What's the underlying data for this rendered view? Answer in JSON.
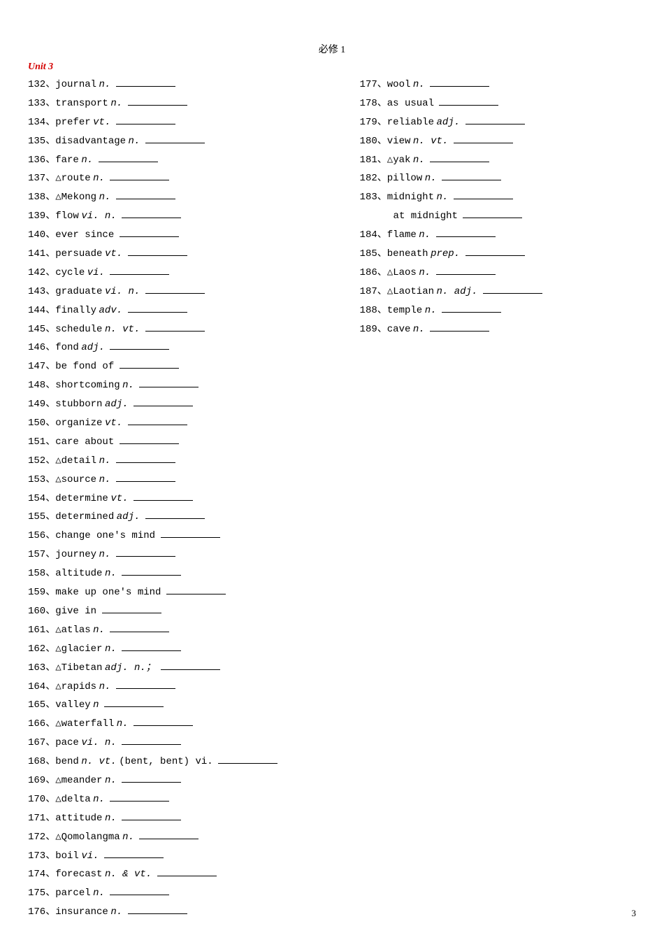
{
  "header": "必修 1",
  "unit_title": "Unit 3",
  "page_number": "3",
  "left": [
    {
      "num": "132",
      "word": "journal",
      "pos": "n."
    },
    {
      "num": "133",
      "word": "transport",
      "pos": "n."
    },
    {
      "num": "134",
      "word": "prefer",
      "pos": "vt."
    },
    {
      "num": "135",
      "word": "disadvantage",
      "pos": "n."
    },
    {
      "num": "136",
      "word": "fare",
      "pos": "n."
    },
    {
      "num": "137",
      "word": "△route",
      "pos": "n."
    },
    {
      "num": "138",
      "word": "△Mekong",
      "pos": "n."
    },
    {
      "num": "139",
      "word": "flow",
      "pos": "vi. n."
    },
    {
      "num": "140",
      "word": "ever since",
      "pos": ""
    },
    {
      "num": "141",
      "word": "persuade",
      "pos": "vt."
    },
    {
      "num": "142",
      "word": "cycle",
      "pos": "vi."
    },
    {
      "num": "143",
      "word": "graduate",
      "pos": "vi.  n."
    },
    {
      "num": "144",
      "word": "finally",
      "pos": "adv."
    },
    {
      "num": "145",
      "word": "schedule",
      "pos": "n. vt."
    },
    {
      "num": "146",
      "word": "fond",
      "pos": "adj."
    },
    {
      "num": "147",
      "word": "be fond of",
      "pos": ""
    },
    {
      "num": "148",
      "word": "shortcoming",
      "pos": "n."
    },
    {
      "num": "149",
      "word": "stubborn",
      "pos": "adj."
    },
    {
      "num": "150",
      "word": "organize",
      "pos": "vt."
    },
    {
      "num": "151",
      "word": "care about",
      "pos": ""
    },
    {
      "num": "152",
      "word": "△detail",
      "pos": "n."
    },
    {
      "num": "153",
      "word": "△source",
      "pos": "n."
    },
    {
      "num": "154",
      "word": "determine",
      "pos": "vt."
    },
    {
      "num": "155",
      "word": "determined",
      "pos": "adj."
    },
    {
      "num": "156",
      "word": "change one's mind",
      "pos": ""
    },
    {
      "num": "157",
      "word": "journey",
      "pos": "n."
    },
    {
      "num": "158",
      "word": "altitude",
      "pos": "n."
    },
    {
      "num": "159",
      "word": "make up one's mind",
      "pos": ""
    },
    {
      "num": "160",
      "word": "give in",
      "pos": ""
    },
    {
      "num": "161",
      "word": "△atlas",
      "pos": "n."
    },
    {
      "num": "162",
      "word": "△glacier",
      "pos": "n."
    },
    {
      "num": "163",
      "word": "△Tibetan",
      "pos": "  adj.    n.；"
    },
    {
      "num": "164",
      "word": "△rapids",
      "pos": "n."
    },
    {
      "num": "165",
      "word": "valley",
      "pos": "n"
    },
    {
      "num": "166",
      "word": "△waterfall",
      "pos": "n."
    },
    {
      "num": "167",
      "word": "pace",
      "pos": "vi. n."
    },
    {
      "num": "168",
      "word": "bend",
      "pos": "n. vt.",
      "extra": "(bent, bent)  vi."
    },
    {
      "num": "169",
      "word": "△meander",
      "pos": "n."
    },
    {
      "num": "170",
      "word": "△delta",
      "pos": "n."
    },
    {
      "num": "171",
      "word": "attitude",
      "pos": "n."
    },
    {
      "num": "172",
      "word": "△Qomolangma",
      "pos": "n."
    },
    {
      "num": "173",
      "word": "boil",
      "pos": "vi."
    },
    {
      "num": "174",
      "word": "forecast",
      "pos": "n. & vt."
    },
    {
      "num": "175",
      "word": "parcel",
      "pos": "n."
    },
    {
      "num": "176",
      "word": "insurance",
      "pos": "n."
    }
  ],
  "right": [
    {
      "num": "177",
      "word": "wool",
      "pos": "n."
    },
    {
      "num": "178",
      "word": "as usual",
      "pos": ""
    },
    {
      "num": "179",
      "word": "reliable",
      "pos": "adj."
    },
    {
      "num": "180",
      "word": "view",
      "pos": "n.  vt."
    },
    {
      "num": "181",
      "word": "△yak",
      "pos": "n."
    },
    {
      "num": "182",
      "word": "pillow",
      "pos": "n."
    },
    {
      "num": "183",
      "word": "midnight",
      "pos": "n."
    },
    {
      "sub": true,
      "word": "at midnight",
      "pos": ""
    },
    {
      "num": "184",
      "word": "flame",
      "pos": "n."
    },
    {
      "num": "185",
      "word": "beneath",
      "pos": "prep."
    },
    {
      "num": "186",
      "word": "△Laos",
      "pos": "n."
    },
    {
      "num": "187",
      "word": "△Laotian",
      "pos": " n.  adj."
    },
    {
      "num": "188",
      "word": "temple",
      "pos": "n."
    },
    {
      "num": "189",
      "word": "cave",
      "pos": "n."
    }
  ]
}
